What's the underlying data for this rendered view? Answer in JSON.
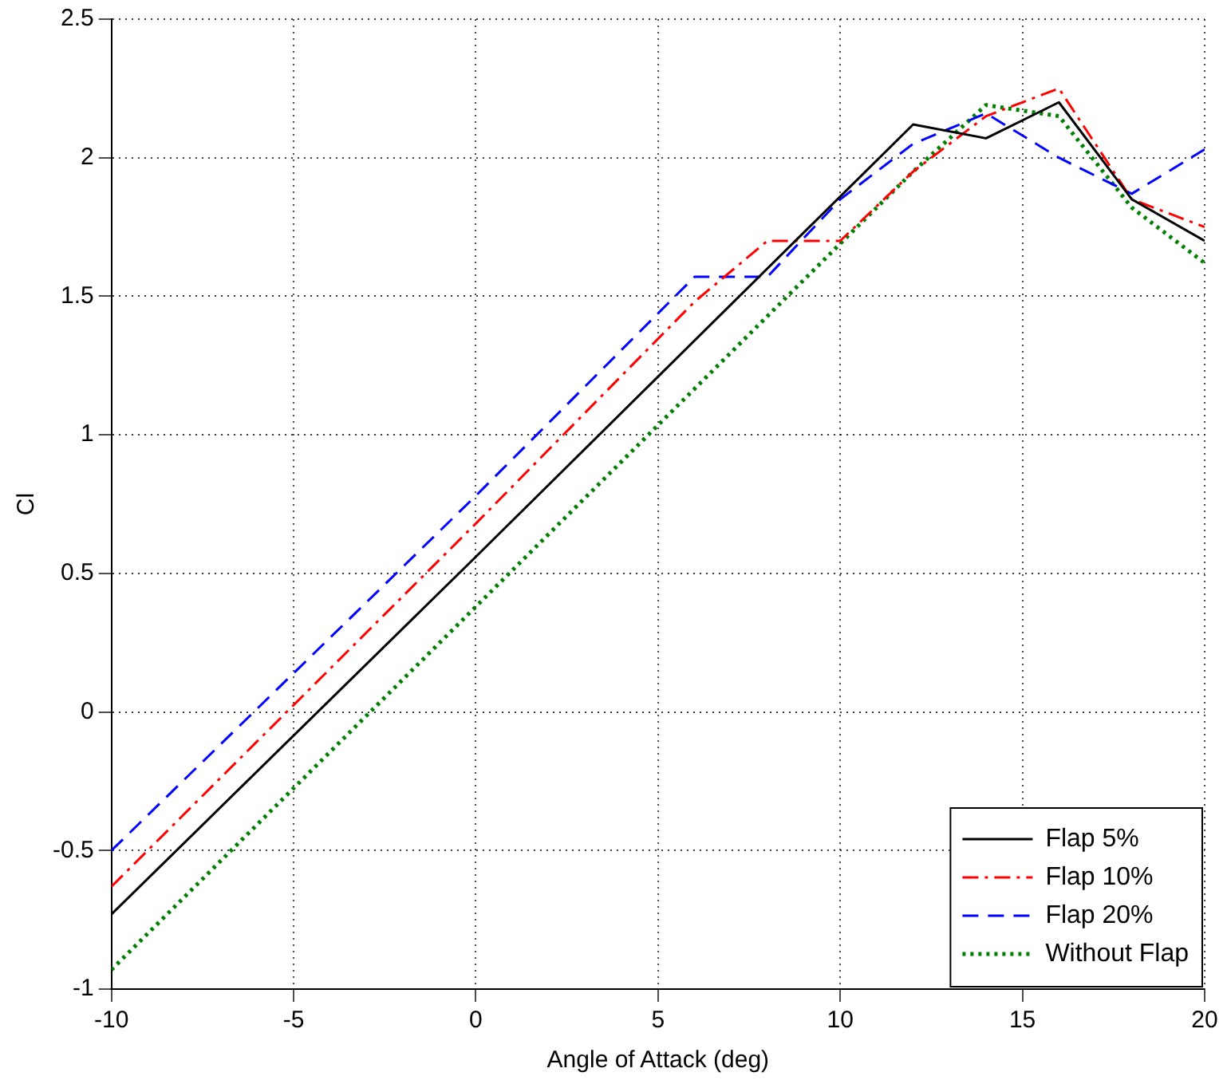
{
  "chart_data": {
    "type": "line",
    "xlabel": "Angle of Attack (deg)",
    "ylabel": "Cl",
    "xlim": [
      -10,
      20
    ],
    "xticks": [
      -10,
      -5,
      0,
      5,
      10,
      15,
      20
    ],
    "ylim": [
      -1,
      2.5
    ],
    "yticks": [
      -1,
      -0.5,
      0,
      0.5,
      1,
      1.5,
      2,
      2.5
    ],
    "grid": true,
    "legend": "bottom right",
    "marker": "none",
    "series": [
      {
        "name": "Flap 5%",
        "color": "#000000",
        "line_style": "solid",
        "x": [
          -10,
          0,
          10,
          12,
          14,
          16,
          18,
          20
        ],
        "values": [
          -0.73,
          0.56,
          1.86,
          2.12,
          2.07,
          2.2,
          1.85,
          1.7
        ]
      },
      {
        "name": "Flap 10%",
        "color": "#ff0000",
        "line_style": "dashdot",
        "x": [
          -10,
          0,
          6,
          8,
          10,
          12,
          14,
          16,
          18,
          20
        ],
        "values": [
          -0.63,
          0.68,
          1.48,
          1.7,
          1.7,
          1.95,
          2.15,
          2.25,
          1.85,
          1.75
        ]
      },
      {
        "name": "Flap 20%",
        "color": "#0000ff",
        "line_style": "dashed",
        "x": [
          -10,
          0,
          6,
          8,
          10,
          12,
          14,
          16,
          18,
          20
        ],
        "values": [
          -0.5,
          0.78,
          1.57,
          1.57,
          1.85,
          2.05,
          2.16,
          2.0,
          1.87,
          2.03
        ]
      },
      {
        "name": "Without Flap",
        "color": "#008000",
        "line_style": "dotted",
        "x": [
          -10,
          0,
          10,
          12,
          14,
          16,
          18,
          20
        ],
        "values": [
          -0.93,
          0.38,
          1.69,
          1.95,
          2.19,
          2.15,
          1.82,
          1.62
        ]
      }
    ]
  }
}
